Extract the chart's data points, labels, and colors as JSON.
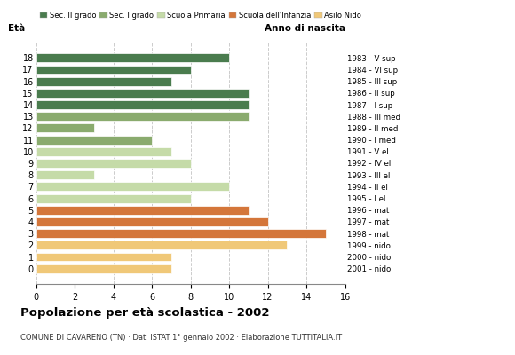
{
  "ages": [
    18,
    17,
    16,
    15,
    14,
    13,
    12,
    11,
    10,
    9,
    8,
    7,
    6,
    5,
    4,
    3,
    2,
    1,
    0
  ],
  "values": [
    10,
    8,
    7,
    11,
    11,
    11,
    3,
    6,
    7,
    8,
    3,
    10,
    8,
    11,
    12,
    15,
    13,
    7,
    7
  ],
  "right_labels": [
    "1983 - V sup",
    "1984 - VI sup",
    "1985 - III sup",
    "1986 - II sup",
    "1987 - I sup",
    "1988 - III med",
    "1989 - II med",
    "1990 - I med",
    "1991 - V el",
    "1992 - IV el",
    "1993 - III el",
    "1994 - II el",
    "1995 - I el",
    "1996 - mat",
    "1997 - mat",
    "1998 - mat",
    "1999 - nido",
    "2000 - nido",
    "2001 - nido"
  ],
  "bar_colors": [
    "#4a7c4e",
    "#4a7c4e",
    "#4a7c4e",
    "#4a7c4e",
    "#4a7c4e",
    "#8aab6e",
    "#8aab6e",
    "#8aab6e",
    "#c5dba8",
    "#c5dba8",
    "#c5dba8",
    "#c5dba8",
    "#c5dba8",
    "#d4763a",
    "#d4763a",
    "#d4763a",
    "#f0c878",
    "#f0c878",
    "#f0c878"
  ],
  "legend_labels": [
    "Sec. II grado",
    "Sec. I grado",
    "Scuola Primaria",
    "Scuola dell'Infanzia",
    "Asilo Nido"
  ],
  "legend_colors": [
    "#4a7c4e",
    "#8aab6e",
    "#c5dba8",
    "#d4763a",
    "#f0c878"
  ],
  "title": "Popolazione per età scolastica - 2002",
  "subtitle": "COMUNE DI CAVARENO (TN) · Dati ISTAT 1° gennaio 2002 · Elaborazione TUTTITALIA.IT",
  "label_eta": "Età",
  "label_anno": "Anno di nascita",
  "xlim": [
    0,
    16
  ],
  "xticks": [
    0,
    2,
    4,
    6,
    8,
    10,
    12,
    14,
    16
  ],
  "background_color": "#ffffff",
  "grid_color": "#cccccc"
}
